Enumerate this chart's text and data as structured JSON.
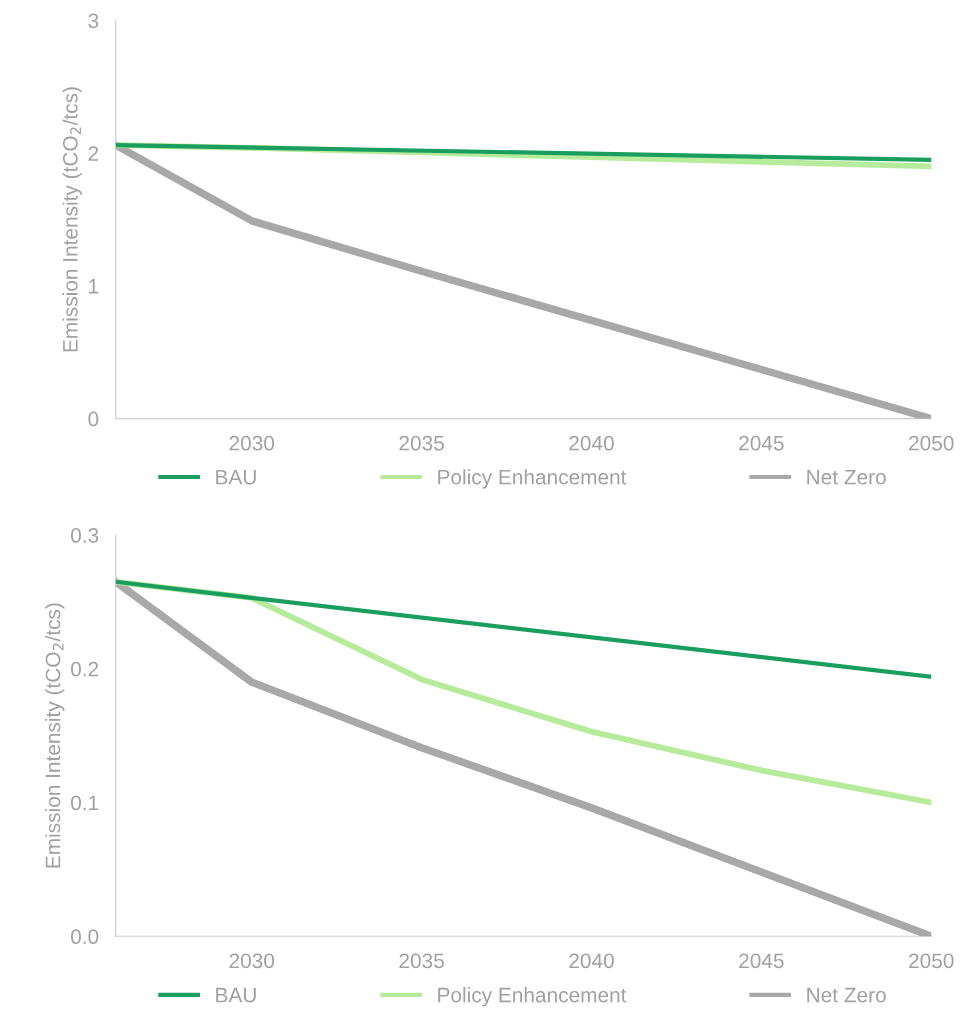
{
  "chart_data": [
    {
      "type": "line",
      "ylabel": "Emission Intensity (tCO$_{2}$/tcs)",
      "xlim": [
        2026,
        2050
      ],
      "xticks": [
        2030,
        2035,
        2040,
        2045,
        2050
      ],
      "ylim": [
        0,
        3
      ],
      "yticks": [
        0,
        1,
        2,
        3
      ],
      "grid": false,
      "legend": "bottom",
      "marker": "none",
      "line_style": "solid",
      "series": [
        {
          "name": "BAU",
          "color": "#1a9e5f",
          "x": [
            2026,
            2050
          ],
          "values": [
            2.06,
            1.95
          ]
        },
        {
          "name": "Policy Enhancement",
          "color": "#b5eb9b",
          "x": [
            2026,
            2030,
            2050
          ],
          "values": [
            2.06,
            2.04,
            1.9
          ]
        },
        {
          "name": "Net Zero",
          "color": "#a8a8a8",
          "x": [
            2026,
            2030,
            2035,
            2040,
            2045,
            2050
          ],
          "values": [
            2.06,
            1.49,
            1.11,
            0.74,
            0.37,
            0
          ]
        }
      ]
    },
    {
      "type": "line",
      "ylabel": "Emission Intensity (tCO$_{2}$/tcs)",
      "xlim": [
        2026,
        2050
      ],
      "xticks": [
        2030,
        2035,
        2040,
        2045,
        2050
      ],
      "ylim": [
        0,
        0.3
      ],
      "yticks": [
        {
          "value": 0,
          "label": "0.0"
        },
        0.1,
        0.2,
        0.3
      ],
      "grid": false,
      "legend": "bottom",
      "marker": "none",
      "line_style": "solid",
      "series": [
        {
          "name": "BAU",
          "color": "#1a9e5f",
          "x": [
            2026,
            2030,
            2050
          ],
          "values": [
            0.265,
            0.253,
            0.194
          ]
        },
        {
          "name": "Policy Enhancement",
          "color": "#b5eb9b",
          "x": [
            2026,
            2030,
            2035,
            2040,
            2045,
            2050
          ],
          "values": [
            0.265,
            0.253,
            0.192,
            0.153,
            0.124,
            0.1
          ]
        },
        {
          "name": "Net Zero",
          "color": "#a8a8a8",
          "x": [
            2026,
            2030,
            2035,
            2040,
            2045,
            2050
          ],
          "values": [
            0.265,
            0.19,
            0.141,
            0.096,
            0.048,
            0
          ]
        }
      ]
    }
  ]
}
